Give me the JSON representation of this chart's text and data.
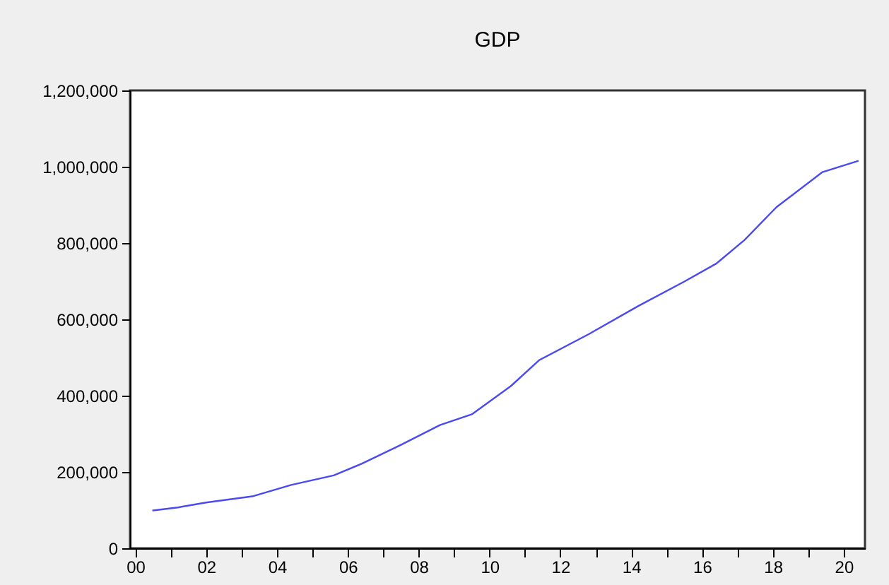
{
  "chart_data": {
    "type": "line",
    "title": "GDP",
    "x": [
      2000.5,
      2001.2,
      2002.0,
      2003.3,
      2004.4,
      2005.6,
      2006.4,
      2007.5,
      2008.6,
      2009.5,
      2010.6,
      2011.4,
      2012.8,
      2014.2,
      2015.5,
      2016.4,
      2017.2,
      2018.1,
      2019.4,
      2020.4
    ],
    "series": [
      {
        "color": "#4a4af0",
        "values": [
          99000,
          107000,
          120000,
          136000,
          166000,
          191000,
          222000,
          271000,
          323000,
          351000,
          425000,
          493000,
          561000,
          635000,
          699000,
          746000,
          808000,
          894000,
          986000,
          1015000
        ]
      }
    ],
    "xlim": [
      1999.85,
      2020.6
    ],
    "xticks": [
      {
        "value": 2000,
        "label": "00"
      },
      {
        "value": 2001,
        "label": null
      },
      {
        "value": 2002,
        "label": "02"
      },
      {
        "value": 2003,
        "label": null
      },
      {
        "value": 2004,
        "label": "04"
      },
      {
        "value": 2005,
        "label": null
      },
      {
        "value": 2006,
        "label": "06"
      },
      {
        "value": 2007,
        "label": null
      },
      {
        "value": 2008,
        "label": "08"
      },
      {
        "value": 2009,
        "label": null
      },
      {
        "value": 2010,
        "label": "10"
      },
      {
        "value": 2011,
        "label": null
      },
      {
        "value": 2012,
        "label": "12"
      },
      {
        "value": 2013,
        "label": null
      },
      {
        "value": 2014,
        "label": "14"
      },
      {
        "value": 2015,
        "label": null
      },
      {
        "value": 2016,
        "label": "16"
      },
      {
        "value": 2017,
        "label": null
      },
      {
        "value": 2018,
        "label": "18"
      },
      {
        "value": 2019,
        "label": null
      },
      {
        "value": 2020,
        "label": "20"
      }
    ],
    "ylim": [
      0,
      1200000
    ],
    "yticks": [
      {
        "value": 0,
        "label": "0"
      },
      {
        "value": 200000,
        "label": "200,000"
      },
      {
        "value": 400000,
        "label": "400,000"
      },
      {
        "value": 600000,
        "label": "600,000"
      },
      {
        "value": 800000,
        "label": "800,000"
      },
      {
        "value": 1000000,
        "label": "1,000,000"
      },
      {
        "value": 1200000,
        "label": "1,200,000"
      }
    ],
    "grid": false
  }
}
